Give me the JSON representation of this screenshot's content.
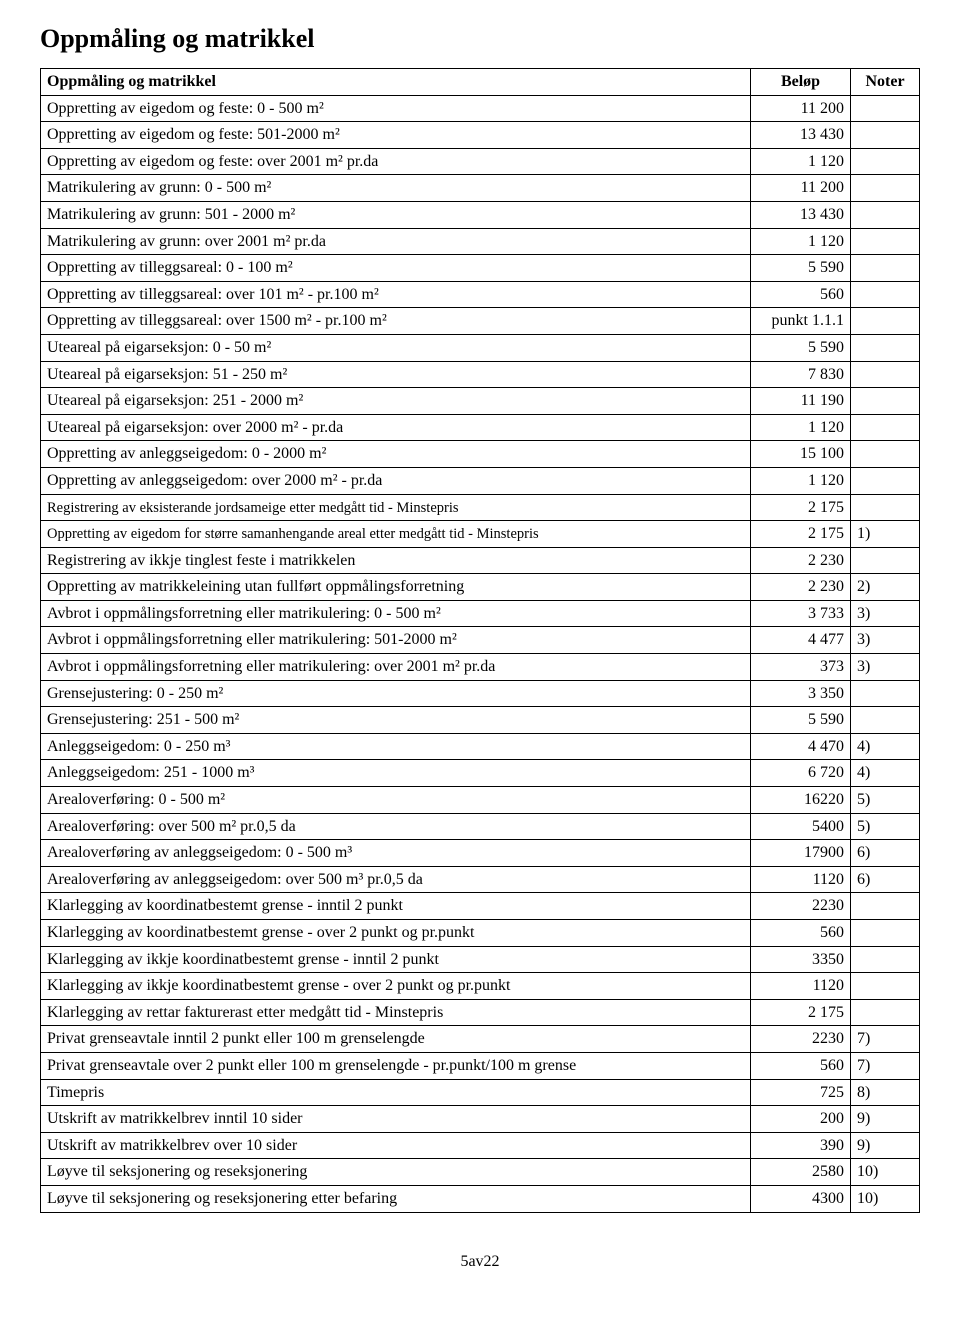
{
  "page": {
    "title": "Oppmåling og matrikkel",
    "footer": "5av22"
  },
  "table": {
    "headers": {
      "desc": "Oppmåling og matrikkel",
      "amount": "Beløp",
      "note": "Noter"
    },
    "rows": [
      {
        "desc": "Oppretting av eigedom og feste: 0 - 500 m²",
        "amount": "11 200",
        "note": ""
      },
      {
        "desc": "Oppretting av eigedom og feste: 501-2000 m²",
        "amount": "13 430",
        "note": ""
      },
      {
        "desc": "Oppretting av eigedom og feste: over 2001 m² pr.da",
        "amount": "1 120",
        "note": ""
      },
      {
        "desc": "Matrikulering av grunn: 0 - 500 m²",
        "amount": "11 200",
        "note": ""
      },
      {
        "desc": "Matrikulering av grunn: 501 - 2000 m²",
        "amount": "13 430",
        "note": ""
      },
      {
        "desc": "Matrikulering av grunn: over 2001 m² pr.da",
        "amount": "1 120",
        "note": ""
      },
      {
        "desc": "Oppretting av tilleggsareal: 0 - 100 m²",
        "amount": "5 590",
        "note": ""
      },
      {
        "desc": "Oppretting av tilleggsareal: over 101 m² -   pr.100 m²",
        "amount": "560",
        "note": ""
      },
      {
        "desc": "Oppretting av tilleggsareal: over 1500 m² -  pr.100 m²",
        "amount": "punkt 1.1.1",
        "note": ""
      },
      {
        "desc": "Uteareal på eigarseksjon: 0 - 50 m²",
        "amount": "5 590",
        "note": ""
      },
      {
        "desc": "Uteareal på eigarseksjon: 51 - 250 m²",
        "amount": "7 830",
        "note": ""
      },
      {
        "desc": "Uteareal på eigarseksjon: 251 - 2000 m²",
        "amount": "11 190",
        "note": ""
      },
      {
        "desc": "Uteareal på eigarseksjon: over 2000 m² - pr.da",
        "amount": "1 120",
        "note": ""
      },
      {
        "desc": "Oppretting av anleggseigedom: 0 - 2000 m²",
        "amount": "15 100",
        "note": ""
      },
      {
        "desc": "Oppretting av anleggseigedom: over 2000 m² - pr.da",
        "amount": "1 120",
        "note": ""
      },
      {
        "desc": "Registrering av eksisterande jordsameige etter medgått tid - Minstepris",
        "amount": "2 175",
        "note": "",
        "small": true
      },
      {
        "desc": "Oppretting av eigedom for større samanhengande areal etter medgått tid - Minstepris",
        "amount": "2 175",
        "note": "1)",
        "small": true
      },
      {
        "desc": "Registrering av ikkje tinglest feste i matrikkelen",
        "amount": "2 230",
        "note": ""
      },
      {
        "desc": "Oppretting av matrikkeleining utan fullført oppmålingsforretning",
        "amount": "2 230",
        "note": "2)"
      },
      {
        "desc": "Avbrot  i oppmålingsforretning eller matrikulering: 0 - 500 m²",
        "amount": "3 733",
        "note": "3)"
      },
      {
        "desc": "Avbrot  i oppmålingsforretning eller matrikulering: 501-2000 m²",
        "amount": "4 477",
        "note": "3)"
      },
      {
        "desc": "Avbrot  i oppmålingsforretning eller matrikulering: over 2001 m² pr.da",
        "amount": "373",
        "note": "3)"
      },
      {
        "desc": "Grensejustering: 0 - 250 m²",
        "amount": "3 350",
        "note": ""
      },
      {
        "desc": "Grensejustering: 251 - 500 m²",
        "amount": "5 590",
        "note": ""
      },
      {
        "desc": "Anleggseigedom: 0 - 250 m³",
        "amount": "4 470",
        "note": "4)"
      },
      {
        "desc": "Anleggseigedom: 251 - 1000 m³",
        "amount": "6 720",
        "note": "4)"
      },
      {
        "desc": "Arealoverføring: 0 - 500 m²",
        "amount": "16220",
        "note": "5)"
      },
      {
        "desc": "Arealoverføring: over 500 m² pr.0,5 da",
        "amount": "5400",
        "note": "5)"
      },
      {
        "desc": "Arealoverføring av anleggseigedom: 0 - 500 m³",
        "amount": "17900",
        "note": "6)"
      },
      {
        "desc": "Arealoverføring av anleggseigedom: over 500 m³ pr.0,5 da",
        "amount": "1120",
        "note": "6)"
      },
      {
        "desc": "Klarlegging av koordinatbestemt grense - inntil 2 punkt",
        "amount": "2230",
        "note": ""
      },
      {
        "desc": "Klarlegging av koordinatbestemt grense - over 2 punkt og pr.punkt",
        "amount": "560",
        "note": ""
      },
      {
        "desc": "Klarlegging av ikkje koordinatbestemt grense - inntil 2 punkt",
        "amount": "3350",
        "note": ""
      },
      {
        "desc": "Klarlegging av ikkje koordinatbestemt grense - over 2 punkt og pr.punkt",
        "amount": "1120",
        "note": ""
      },
      {
        "desc": "Klarlegging av rettar fakturerast etter medgått tid - Minstepris",
        "amount": "2 175",
        "note": ""
      },
      {
        "desc": "Privat grenseavtale inntil 2 punkt eller 100 m grenselengde",
        "amount": "2230",
        "note": "7)"
      },
      {
        "desc": "Privat grenseavtale over 2 punkt eller 100 m grenselengde - pr.punkt/100 m grense",
        "amount": "560",
        "note": "7)"
      },
      {
        "desc": "Timepris",
        "amount": "725",
        "note": "8)"
      },
      {
        "desc": "Utskrift av matrikkelbrev inntil 10 sider",
        "amount": "200",
        "note": "9)"
      },
      {
        "desc": "Utskrift av matrikkelbrev over 10 sider",
        "amount": "390",
        "note": "9)"
      },
      {
        "desc": "Løyve til seksjonering og reseksjonering",
        "amount": "2580",
        "note": "10)"
      },
      {
        "desc": "Løyve til seksjonering og reseksjonering etter befaring",
        "amount": "4300",
        "note": "10)"
      }
    ]
  }
}
